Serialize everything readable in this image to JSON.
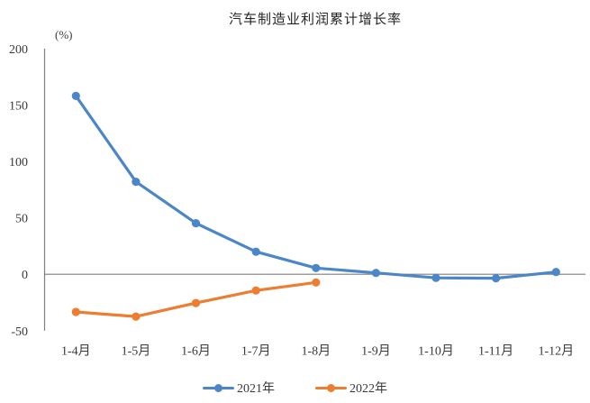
{
  "chart": {
    "title": "汽车制造业利润累计增长率",
    "unit_label": "(%)",
    "background": "#ffffff",
    "axis_color": "#7f7f7f",
    "text_color": "#3a3a3a"
  },
  "chart_data": {
    "type": "line",
    "title": "汽车制造业利润累计增长率",
    "ylabel": "(%)",
    "categories": [
      "1-4月",
      "1-5月",
      "1-6月",
      "1-7月",
      "1-8月",
      "1-9月",
      "1-10月",
      "1-11月",
      "1-12月"
    ],
    "series": [
      {
        "name": "2021年",
        "color": "#4A86C8",
        "values": [
          158,
          82,
          45.2,
          20,
          5.5,
          1.2,
          -3.2,
          -3.5,
          2
        ]
      },
      {
        "name": "2022年",
        "color": "#ED7D31",
        "values": [
          -33.4,
          -37.5,
          -25.5,
          -14.4,
          -7.3,
          null,
          null,
          null,
          null
        ]
      }
    ],
    "ylim": [
      -50,
      200
    ],
    "yticks": [
      200,
      150,
      100,
      50,
      0,
      -50
    ],
    "grid": false,
    "zero_line": true,
    "legend_position": "bottom"
  }
}
